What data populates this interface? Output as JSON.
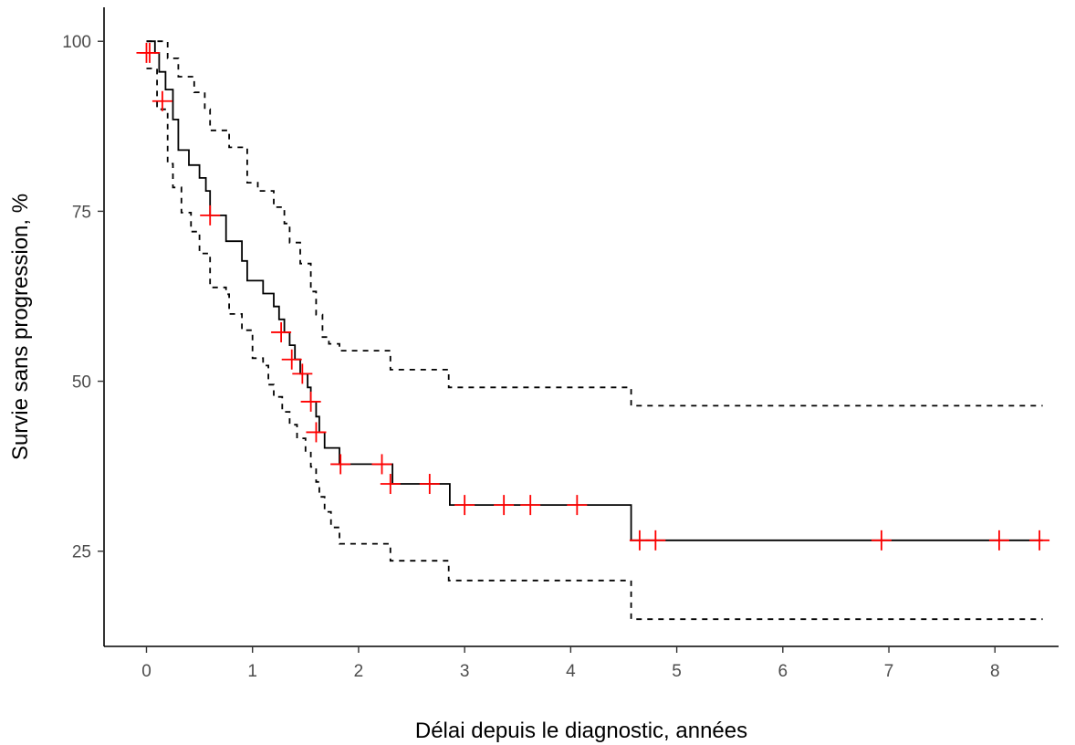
{
  "chart_data": {
    "type": "line",
    "title": "",
    "xlabel": "Délai depuis le diagnostic, années",
    "ylabel": "Survie sans progression, %",
    "xlim": [
      -0.4,
      8.6
    ],
    "ylim": [
      11,
      105
    ],
    "x_ticks": [
      0,
      1,
      2,
      3,
      4,
      5,
      6,
      7,
      8
    ],
    "y_ticks": [
      25,
      50,
      75,
      100
    ],
    "x_tick_labels": [
      "0",
      "1",
      "2",
      "3",
      "4",
      "5",
      "6",
      "7",
      "8"
    ],
    "y_tick_labels": [
      "25",
      "50",
      "75",
      "100"
    ],
    "grid": false,
    "legend": "none",
    "series": [
      {
        "role": "estimate",
        "style": "solid",
        "color": "#000000",
        "points": [
          [
            0,
            100
          ],
          [
            0.08,
            98.3
          ],
          [
            0.12,
            95.5
          ],
          [
            0.18,
            92.9
          ],
          [
            0.25,
            88.5
          ],
          [
            0.3,
            84
          ],
          [
            0.4,
            81.8
          ],
          [
            0.5,
            79.9
          ],
          [
            0.56,
            78
          ],
          [
            0.6,
            74.4
          ],
          [
            0.7,
            74.4
          ],
          [
            0.75,
            70.6
          ],
          [
            0.9,
            67.7
          ],
          [
            0.95,
            64.8
          ],
          [
            1.1,
            62.9
          ],
          [
            1.2,
            61
          ],
          [
            1.25,
            59.1
          ],
          [
            1.3,
            57.2
          ],
          [
            1.35,
            55.3
          ],
          [
            1.4,
            53.2
          ],
          [
            1.45,
            51.1
          ],
          [
            1.52,
            49.1
          ],
          [
            1.55,
            47
          ],
          [
            1.6,
            44.8
          ],
          [
            1.63,
            42.5
          ],
          [
            1.68,
            40.2
          ],
          [
            1.82,
            37.8
          ],
          [
            2.3,
            37.8
          ],
          [
            2.32,
            34.9
          ],
          [
            2.85,
            34.9
          ],
          [
            2.86,
            31.8
          ],
          [
            4.56,
            31.8
          ],
          [
            4.57,
            26.6
          ],
          [
            8.45,
            26.6
          ]
        ]
      },
      {
        "role": "upper-ci",
        "style": "dashed",
        "color": "#000000",
        "points": [
          [
            0,
            100
          ],
          [
            0.12,
            100
          ],
          [
            0.2,
            97.5
          ],
          [
            0.3,
            94.8
          ],
          [
            0.45,
            92.5
          ],
          [
            0.55,
            90
          ],
          [
            0.6,
            86.9
          ],
          [
            0.78,
            84.4
          ],
          [
            0.95,
            79.2
          ],
          [
            1.05,
            78
          ],
          [
            1.2,
            75.6
          ],
          [
            1.3,
            73.2
          ],
          [
            1.35,
            70.4
          ],
          [
            1.45,
            67.3
          ],
          [
            1.55,
            63.2
          ],
          [
            1.6,
            59.8
          ],
          [
            1.66,
            56.5
          ],
          [
            1.72,
            55.5
          ],
          [
            1.82,
            54.5
          ],
          [
            2.28,
            54.5
          ],
          [
            2.3,
            51.7
          ],
          [
            2.84,
            51.7
          ],
          [
            2.85,
            49.1
          ],
          [
            4.56,
            49.1
          ],
          [
            4.57,
            46.4
          ],
          [
            8.45,
            46.4
          ]
        ]
      },
      {
        "role": "lower-ci",
        "style": "dashed",
        "color": "#000000",
        "points": [
          [
            0,
            96
          ],
          [
            0.1,
            90
          ],
          [
            0.2,
            82
          ],
          [
            0.25,
            78.5
          ],
          [
            0.33,
            74.8
          ],
          [
            0.42,
            72
          ],
          [
            0.5,
            68.8
          ],
          [
            0.6,
            63.8
          ],
          [
            0.75,
            62.8
          ],
          [
            0.78,
            59.9
          ],
          [
            0.9,
            57.5
          ],
          [
            1.0,
            53.4
          ],
          [
            1.1,
            52.3
          ],
          [
            1.15,
            49.5
          ],
          [
            1.2,
            47.7
          ],
          [
            1.28,
            45.5
          ],
          [
            1.35,
            43.6
          ],
          [
            1.42,
            41.6
          ],
          [
            1.5,
            39.5
          ],
          [
            1.55,
            37.4
          ],
          [
            1.6,
            35.2
          ],
          [
            1.63,
            33
          ],
          [
            1.68,
            30.8
          ],
          [
            1.74,
            28.5
          ],
          [
            1.82,
            26.1
          ],
          [
            2.28,
            26.1
          ],
          [
            2.3,
            23.6
          ],
          [
            2.84,
            23.6
          ],
          [
            2.85,
            20.7
          ],
          [
            4.56,
            20.7
          ],
          [
            4.57,
            15
          ],
          [
            8.45,
            15
          ]
        ]
      }
    ],
    "censored": [
      [
        0.0,
        98.3
      ],
      [
        0.03,
        98.3
      ],
      [
        0.15,
        91.2
      ],
      [
        0.6,
        74.4
      ],
      [
        1.27,
        57.2
      ],
      [
        1.37,
        53.2
      ],
      [
        1.47,
        51.1
      ],
      [
        1.55,
        47.0
      ],
      [
        1.6,
        42.5
      ],
      [
        1.83,
        37.8
      ],
      [
        2.22,
        37.8
      ],
      [
        2.3,
        34.9
      ],
      [
        2.67,
        34.9
      ],
      [
        3.0,
        31.8
      ],
      [
        3.37,
        31.8
      ],
      [
        3.62,
        31.8
      ],
      [
        4.06,
        31.8
      ],
      [
        4.65,
        26.6
      ],
      [
        4.8,
        26.6
      ],
      [
        6.93,
        26.6
      ],
      [
        8.04,
        26.6
      ],
      [
        8.42,
        26.6
      ]
    ],
    "censor_color": "#ff0000"
  }
}
